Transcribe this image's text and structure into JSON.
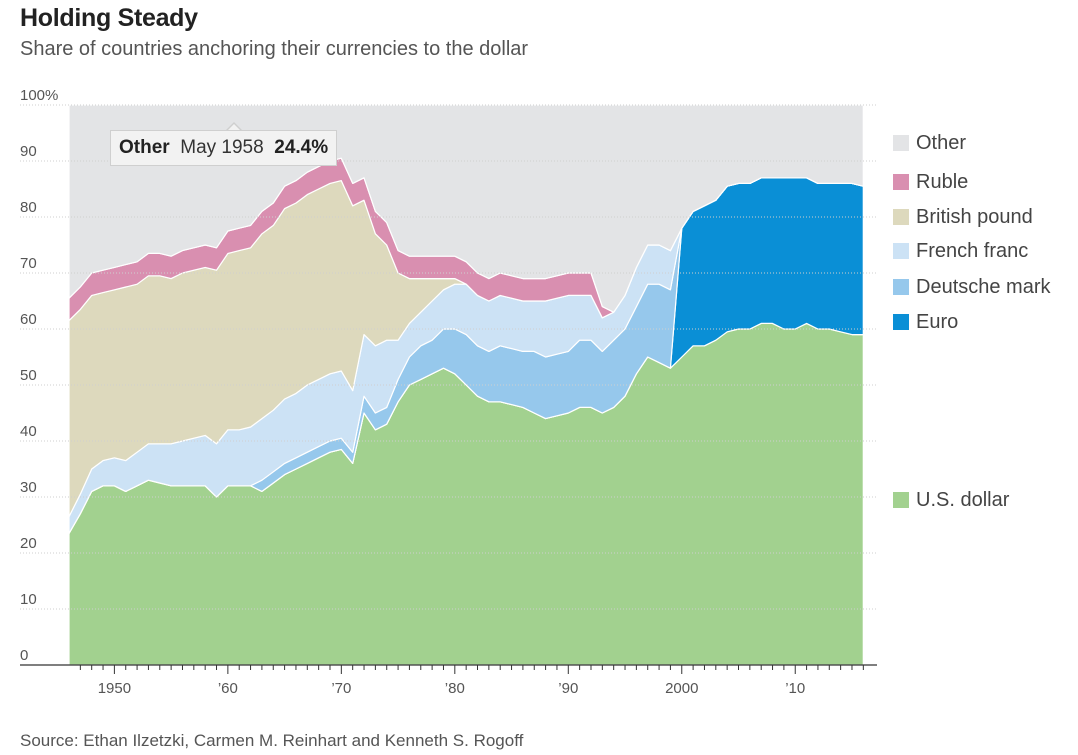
{
  "title": "Holding Steady",
  "subtitle": "Share of countries anchoring their currencies to the dollar",
  "source": "Source: Ethan Ilzetzki, Carmen M. Reinhart and Kenneth S. Rogoff",
  "tooltip": {
    "series": "Other",
    "date": "May 1958",
    "value": "24.4%"
  },
  "legend": [
    {
      "label": "Other",
      "color": "#e3e4e6"
    },
    {
      "label": "Ruble",
      "color": "#d98fb0"
    },
    {
      "label": "British pound",
      "color": "#ddd9bd"
    },
    {
      "label": "French franc",
      "color": "#cce2f5"
    },
    {
      "label": "Deutsche mark",
      "color": "#96c8ec"
    },
    {
      "label": "Euro",
      "color": "#0a8fd6"
    },
    {
      "label": "U.S. dollar",
      "color": "#a2d18f"
    }
  ],
  "chart_data": {
    "type": "area",
    "stacked": true,
    "title": "Holding Steady",
    "subtitle": "Share of countries anchoring their currencies to the dollar",
    "ylabel": "",
    "xlabel": "",
    "ylim": [
      0,
      100
    ],
    "xlim": [
      1946,
      2016.5
    ],
    "y_ticks": [
      "0",
      "10",
      "20",
      "30",
      "40",
      "50",
      "60",
      "70",
      "80",
      "90",
      "100%"
    ],
    "x_tick_labels": [
      {
        "year": 1950,
        "label": "1950"
      },
      {
        "year": 1960,
        "label": "’60"
      },
      {
        "year": 1970,
        "label": "’70"
      },
      {
        "year": 1980,
        "label": "’80"
      },
      {
        "year": 1990,
        "label": "’90"
      },
      {
        "year": 2000,
        "label": "2000"
      },
      {
        "year": 2010,
        "label": "’10"
      }
    ],
    "x": [
      1946,
      1947,
      1948,
      1949,
      1950,
      1951,
      1952,
      1953,
      1954,
      1955,
      1956,
      1957,
      1958,
      1959,
      1960,
      1961,
      1962,
      1963,
      1964,
      1965,
      1966,
      1967,
      1968,
      1969,
      1970,
      1971,
      1972,
      1973,
      1974,
      1975,
      1976,
      1977,
      1978,
      1979,
      1980,
      1981,
      1982,
      1983,
      1984,
      1985,
      1986,
      1987,
      1988,
      1989,
      1990,
      1991,
      1992,
      1993,
      1994,
      1995,
      1996,
      1997,
      1998,
      1999,
      2000,
      2001,
      2002,
      2003,
      2004,
      2005,
      2006,
      2007,
      2008,
      2009,
      2010,
      2011,
      2012,
      2013,
      2014,
      2015,
      2016
    ],
    "series": [
      {
        "name": "U.S. dollar",
        "color": "#a2d18f",
        "values": [
          23.5,
          27,
          31,
          32,
          32,
          31,
          32,
          33,
          32.5,
          32,
          32,
          32,
          32,
          30,
          32,
          32,
          32,
          31,
          32.5,
          34,
          35,
          36,
          37,
          38,
          38.5,
          36,
          45,
          42,
          43,
          47,
          50,
          51,
          52,
          53,
          52,
          50,
          48,
          47,
          47,
          46.5,
          46,
          45,
          44,
          44.5,
          45,
          46,
          46,
          45,
          46,
          48,
          52,
          55,
          54,
          53,
          55,
          57,
          57,
          58,
          59.5,
          60,
          60,
          61,
          61,
          60,
          60,
          61,
          60,
          60,
          59.5,
          59,
          59
        ]
      },
      {
        "name": "Euro",
        "color": "#0a8fd6",
        "values": [
          0,
          0,
          0,
          0,
          0,
          0,
          0,
          0,
          0,
          0,
          0,
          0,
          0,
          0,
          0,
          0,
          0,
          0,
          0,
          0,
          0,
          0,
          0,
          0,
          0,
          0,
          0,
          0,
          0,
          0,
          0,
          0,
          0,
          0,
          0,
          0,
          0,
          0,
          0,
          0,
          0,
          0,
          0,
          0,
          0,
          0,
          0,
          0,
          0,
          0,
          0,
          0,
          0,
          0,
          23,
          24,
          25,
          25,
          26,
          26,
          26,
          26,
          26,
          27,
          27,
          26,
          26,
          26,
          26.5,
          27,
          26.5
        ]
      },
      {
        "name": "Deutsche mark",
        "color": "#96c8ec",
        "values": [
          0,
          0,
          0,
          0,
          0,
          0,
          0,
          0,
          0,
          0,
          0,
          0,
          0,
          0,
          0,
          0,
          0,
          2,
          2,
          2,
          2,
          2,
          2,
          2,
          2,
          2,
          3,
          3,
          3,
          4,
          5,
          6,
          6,
          7,
          8,
          9,
          9,
          9,
          10,
          10,
          10,
          11,
          11,
          11,
          11,
          12,
          12,
          11,
          12,
          12,
          12,
          13,
          14,
          14,
          0,
          0,
          0,
          0,
          0,
          0,
          0,
          0,
          0,
          0,
          0,
          0,
          0,
          0,
          0,
          0,
          0
        ]
      },
      {
        "name": "French franc",
        "color": "#cce2f5",
        "values": [
          3,
          3.5,
          4,
          4.5,
          5,
          5.5,
          6,
          6.5,
          7,
          7.5,
          8,
          8.5,
          9,
          9.5,
          10,
          10,
          10.5,
          11,
          11,
          11.5,
          11.5,
          12,
          12,
          12,
          12,
          11,
          11,
          12,
          12,
          7,
          6,
          6,
          7,
          7,
          8,
          9,
          9,
          9,
          9,
          9,
          9,
          9,
          10,
          10,
          10,
          8,
          8,
          6,
          5,
          6,
          7,
          7,
          7,
          7,
          0,
          0,
          0,
          0,
          0,
          0,
          0,
          0,
          0,
          0,
          0,
          0,
          0,
          0,
          0,
          0,
          0
        ]
      },
      {
        "name": "British pound",
        "color": "#ddd9bd",
        "values": [
          35,
          33,
          31,
          30,
          30,
          31,
          30,
          30,
          30,
          29.5,
          30,
          30,
          30,
          31,
          31.5,
          32,
          32,
          33,
          33,
          34,
          34,
          34,
          34,
          34,
          34,
          33,
          24,
          20,
          17,
          12,
          8,
          6,
          4,
          2,
          1,
          0,
          0,
          0,
          0,
          0,
          0,
          0,
          0,
          0,
          0,
          0,
          0,
          0,
          0,
          0,
          0,
          0,
          0,
          0,
          0,
          0,
          0,
          0,
          0,
          0,
          0,
          0,
          0,
          0,
          0,
          0,
          0,
          0,
          0,
          0,
          0
        ]
      },
      {
        "name": "Ruble",
        "color": "#d98fb0",
        "values": [
          4,
          4,
          4,
          4,
          4,
          4,
          4,
          4,
          4,
          4,
          4,
          4,
          4,
          4,
          4,
          4,
          4,
          4,
          4,
          4,
          4,
          4,
          4,
          4,
          4,
          4,
          4,
          4,
          4,
          4,
          4,
          4,
          4,
          4,
          4,
          4,
          4,
          4,
          4,
          4,
          4,
          4,
          4,
          4,
          4,
          4,
          4,
          2,
          0,
          0,
          0,
          0,
          0,
          0,
          0,
          0,
          0,
          0,
          0,
          0,
          0,
          0,
          0,
          0,
          0,
          0,
          0,
          0,
          0,
          0,
          0
        ]
      },
      {
        "name": "Other",
        "color": "#e3e4e6",
        "values": [
          34.5,
          32.5,
          30,
          29.5,
          29,
          28.5,
          28,
          26.5,
          26.5,
          27,
          26,
          25.5,
          25,
          25.5,
          22.5,
          22,
          21.5,
          19,
          17.5,
          14.5,
          13.5,
          12,
          11,
          10,
          9.5,
          14,
          13,
          19,
          21,
          26,
          27,
          27,
          27,
          27,
          27,
          28,
          30,
          31,
          30,
          30.5,
          31,
          31,
          31,
          30.5,
          30,
          30,
          30,
          36,
          37,
          34,
          29,
          25,
          25,
          26,
          22,
          19,
          18,
          17,
          14.5,
          14,
          14,
          13,
          13,
          13,
          13,
          13,
          14,
          14,
          14,
          14,
          14.5
        ]
      }
    ],
    "tooltip": {
      "series": "Other",
      "date": "May 1958",
      "value": 24.4
    }
  }
}
